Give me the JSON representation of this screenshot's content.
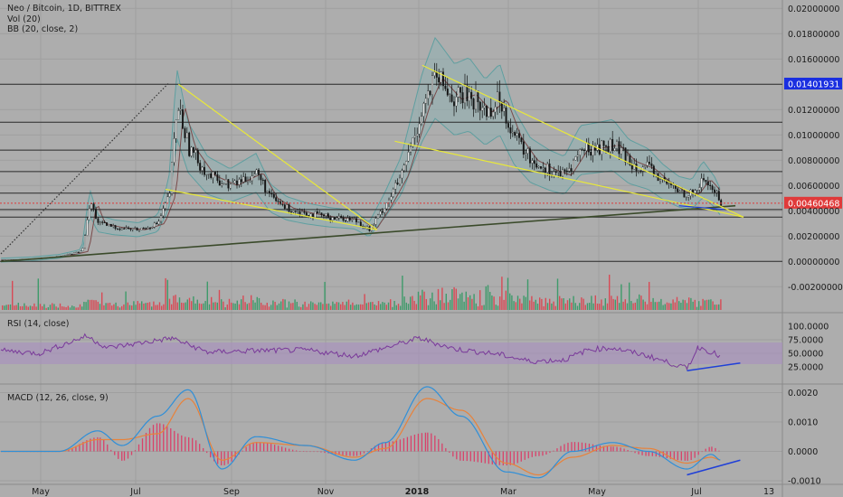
{
  "chart_data": {
    "type": "candlestick",
    "title": "Neo / Bitcoin, 1D, BITTREX",
    "indicators": [
      "Vol (20)",
      "BB (20, close, 2)"
    ],
    "price_axis": {
      "ticks": [
        "0.02000000",
        "0.01800000",
        "0.01600000",
        "0.01401931",
        "0.01200000",
        "0.01000000",
        "0.00800000",
        "0.00600000",
        "0.00460468",
        "0.00400000",
        "0.00200000",
        "0.00000000",
        "-0.00200000"
      ],
      "last_price": "0.00460468",
      "highlighted_level": "0.01401931"
    },
    "horizontal_levels": [
      0.014,
      0.011,
      0.0088,
      0.0071,
      0.0054,
      0.0041,
      0.0035,
      0.0
    ],
    "x_ticks": [
      "May",
      "Jul",
      "Sep",
      "Nov",
      "2018",
      "Mar",
      "May",
      "Jul",
      "13"
    ],
    "price_series": {
      "x": [
        "2017-04-26",
        "2017-05-15",
        "2017-06-01",
        "2017-06-15",
        "2017-06-20",
        "2017-06-25",
        "2017-07-05",
        "2017-07-20",
        "2017-08-01",
        "2017-08-08",
        "2017-08-13",
        "2017-08-20",
        "2017-09-01",
        "2017-09-15",
        "2017-10-01",
        "2017-10-10",
        "2017-10-20",
        "2017-11-01",
        "2017-11-15",
        "2017-12-01",
        "2017-12-10",
        "2017-12-20",
        "2017-12-30",
        "2018-01-06",
        "2018-01-12",
        "2018-01-20",
        "2018-02-01",
        "2018-02-10",
        "2018-02-20",
        "2018-03-01",
        "2018-03-10",
        "2018-03-20",
        "2018-04-01",
        "2018-04-10",
        "2018-04-20",
        "2018-05-01",
        "2018-05-10",
        "2018-05-20",
        "2018-06-01",
        "2018-06-10",
        "2018-06-20",
        "2018-06-28",
        "2018-07-05",
        "2018-07-12",
        "2018-07-16"
      ],
      "close": [
        0.0001,
        0.0002,
        0.0004,
        0.0008,
        0.0047,
        0.003,
        0.0027,
        0.0025,
        0.003,
        0.0053,
        0.0125,
        0.009,
        0.0068,
        0.006,
        0.007,
        0.005,
        0.0042,
        0.0038,
        0.0035,
        0.0033,
        0.0025,
        0.0045,
        0.0068,
        0.0097,
        0.0122,
        0.0145,
        0.0128,
        0.0132,
        0.0118,
        0.0128,
        0.0098,
        0.008,
        0.0072,
        0.0068,
        0.0088,
        0.009,
        0.0092,
        0.0079,
        0.0073,
        0.0063,
        0.0055,
        0.0053,
        0.0065,
        0.0055,
        0.0046
      ]
    },
    "trendlines": [
      {
        "from": [
          "2017-04-26",
          0.0
        ],
        "to": [
          "2018-07-25",
          0.0044
        ],
        "color": "#3a4a2a"
      },
      {
        "from": [
          "2017-04-26",
          0.0006
        ],
        "to": [
          "2017-08-08",
          0.0141
        ],
        "color": "#333333",
        "style": "dotted"
      },
      {
        "from": [
          "2017-08-14",
          0.014
        ],
        "to": [
          "2017-12-15",
          0.0025
        ],
        "color": "#e8e83a"
      },
      {
        "from": [
          "2017-08-06",
          0.0057
        ],
        "to": [
          "2017-12-15",
          0.0025
        ],
        "color": "#e8e83a"
      },
      {
        "from": [
          "2018-01-12",
          0.0155
        ],
        "to": [
          "2018-07-30",
          0.0035
        ],
        "color": "#e8e83a"
      },
      {
        "from": [
          "2017-12-26",
          0.0095
        ],
        "to": [
          "2018-07-30",
          0.0035
        ],
        "color": "#e8e83a"
      },
      {
        "from": [
          "2018-06-20",
          0.0044
        ],
        "to": [
          "2018-07-18",
          0.0041
        ],
        "color": "#1f3fd8"
      }
    ],
    "volume_note": "Volume bars (green/red) plotted along bottom of price pane",
    "rsi": {
      "label": "RSI (14, close)",
      "ticks": [
        "100.0000",
        "75.0000",
        "50.0000",
        "25.0000"
      ],
      "band": [
        30,
        70
      ],
      "x": [
        "2017-04-26",
        "2017-05-20",
        "2017-06-18",
        "2017-07-01",
        "2017-08-10",
        "2017-09-01",
        "2017-10-01",
        "2017-11-01",
        "2017-12-01",
        "2017-12-20",
        "2018-01-10",
        "2018-02-01",
        "2018-03-01",
        "2018-03-20",
        "2018-04-10",
        "2018-04-25",
        "2018-05-10",
        "2018-06-01",
        "2018-06-25",
        "2018-07-02",
        "2018-07-12",
        "2018-07-16"
      ],
      "values": [
        55,
        50,
        82,
        60,
        78,
        52,
        55,
        56,
        45,
        60,
        78,
        58,
        48,
        35,
        38,
        57,
        60,
        45,
        22,
        62,
        50,
        42
      ],
      "divergence": {
        "from": [
          "2018-06-25",
          18
        ],
        "to": [
          "2018-07-28",
          32
        ]
      }
    },
    "macd": {
      "label": "MACD (12, 26, close, 9)",
      "ticks": [
        "0.0020",
        "0.0010",
        "0.0000",
        "-0.0010"
      ],
      "x": [
        "2017-04-26",
        "2017-06-01",
        "2017-06-25",
        "2017-07-10",
        "2017-08-01",
        "2017-08-20",
        "2017-09-10",
        "2017-10-01",
        "2017-11-01",
        "2017-12-01",
        "2017-12-20",
        "2018-01-15",
        "2018-02-05",
        "2018-03-05",
        "2018-03-25",
        "2018-04-15",
        "2018-05-10",
        "2018-06-01",
        "2018-06-25",
        "2018-07-10",
        "2018-07-16"
      ],
      "macd_line": [
        0.0,
        0.0,
        0.0007,
        0.0002,
        0.0012,
        0.0021,
        -0.0006,
        0.0005,
        0.0002,
        -0.0003,
        0.0003,
        0.0022,
        0.0012,
        -0.0007,
        -0.0009,
        0.0,
        0.0003,
        0.0,
        -0.0006,
        -0.0001,
        -0.0003
      ],
      "signal_line": [
        0.0,
        0.0,
        0.0004,
        0.0004,
        0.0006,
        0.0018,
        -0.0003,
        0.0003,
        0.0002,
        -0.0002,
        0.0001,
        0.0018,
        0.0014,
        -0.0004,
        -0.0008,
        -0.0002,
        0.0002,
        0.0001,
        -0.0004,
        -0.0002,
        -0.0003
      ],
      "divergence": {
        "from": [
          "2018-06-25",
          -0.0008
        ],
        "to": [
          "2018-07-28",
          -0.0003
        ]
      }
    }
  },
  "colors": {
    "background": "#adadad",
    "grid": "#9f9f9f",
    "bb_fill": "#8fb0b2",
    "bb_line": "#5f9fa0",
    "bb_basis": "#7a4b4b",
    "candle_up": "#eaeaea",
    "candle_down": "#151515",
    "vol_up": "#3e9a6a",
    "vol_down": "#d84a55",
    "rsi_line": "#7a3a9a",
    "rsi_band": "#a98fbf",
    "macd_line": "#2f8fd8",
    "signal_line": "#e8823a",
    "hist_pos": "#d8426a",
    "hist_neg": "#d8426a",
    "last_price_bg": "#e03a3a",
    "level_bg": "#1a2fe0",
    "trend_yellow": "#e8e83a",
    "divergence_blue": "#1f3fd8"
  }
}
